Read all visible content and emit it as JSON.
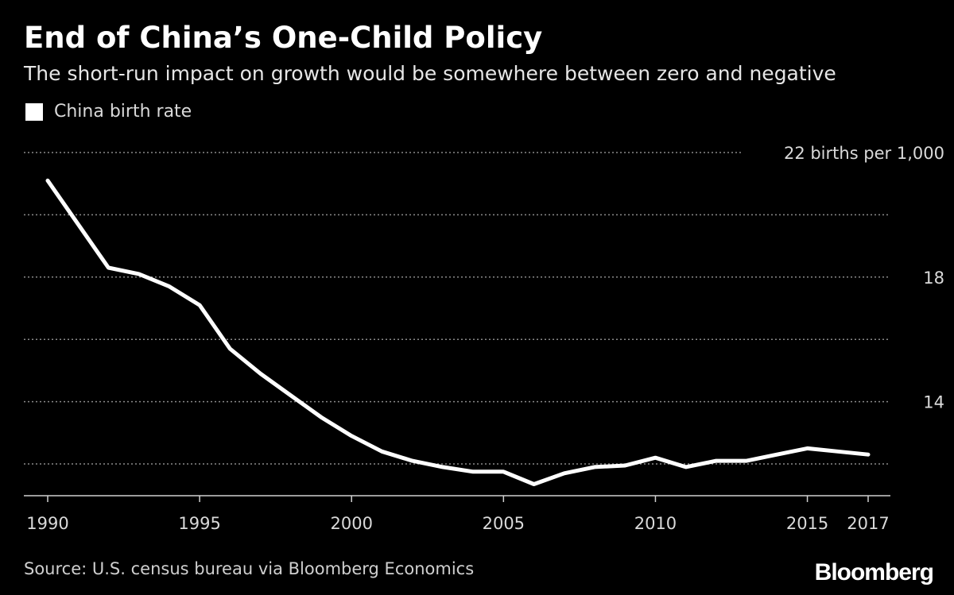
{
  "chart_data": {
    "type": "line",
    "title": "End of China’s One-Child Policy",
    "subtitle": "The short-run impact on growth would be somewhere between zero and negative",
    "legend": [
      "China birth rate"
    ],
    "unit_label": "22 births per 1,000",
    "xlabel": "",
    "ylabel": "",
    "xlim": [
      1990,
      2017
    ],
    "ylim": [
      11.1,
      22
    ],
    "yticks": [
      12,
      14,
      16,
      18,
      20,
      22
    ],
    "ytick_labels": [
      "",
      "14",
      "",
      "18",
      "",
      "22 births per 1,000"
    ],
    "xticks": [
      1990,
      1995,
      2000,
      2005,
      2010,
      2015,
      2017
    ],
    "xtick_labels": [
      "1990",
      "1995",
      "2000",
      "2005",
      "2010",
      "2015",
      "2017"
    ],
    "grid": true,
    "series": [
      {
        "name": "China birth rate",
        "color": "#ffffff",
        "x": [
          1990,
          1991,
          1992,
          1993,
          1994,
          1995,
          1996,
          1997,
          1998,
          1999,
          2000,
          2001,
          2002,
          2003,
          2004,
          2005,
          2006,
          2007,
          2008,
          2009,
          2010,
          2011,
          2012,
          2013,
          2014,
          2015,
          2016,
          2017
        ],
        "values": [
          21.1,
          19.7,
          18.3,
          18.1,
          17.7,
          17.1,
          15.7,
          14.9,
          14.2,
          13.5,
          12.9,
          12.4,
          12.1,
          11.9,
          11.75,
          11.75,
          11.35,
          11.7,
          11.9,
          11.95,
          12.2,
          11.9,
          12.1,
          12.1,
          12.3,
          12.5,
          12.4,
          12.3
        ]
      }
    ],
    "source": "Source: U.S. census bureau via Bloomberg Economics"
  },
  "brand": "Bloomberg",
  "colors": {
    "background": "#000000",
    "line": "#ffffff",
    "grid": "#8a8a8a"
  }
}
